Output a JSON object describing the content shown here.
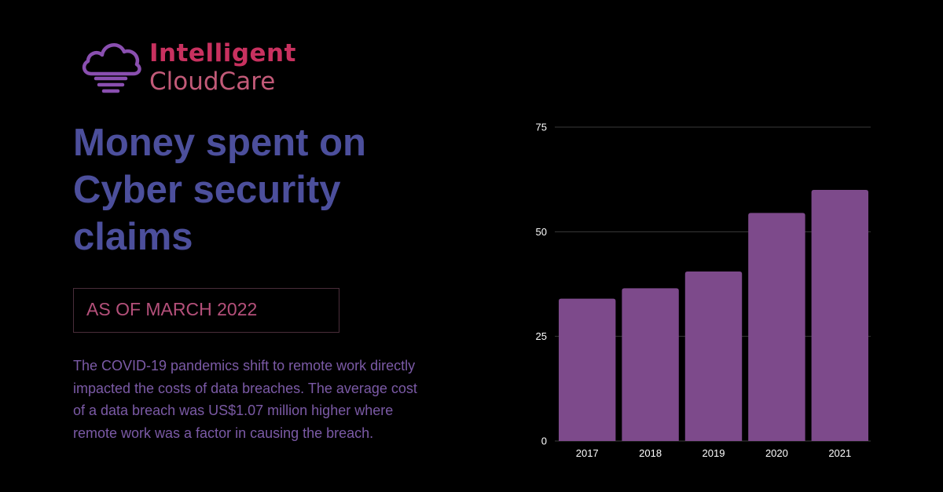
{
  "logo": {
    "line1": "Intelligent",
    "line2": "CloudCare",
    "line1_color": "#c8315f",
    "line2_color": "#c25a78",
    "icon": "cloud-lightbulb-icon",
    "icon_color": "#8a4fb0"
  },
  "title": "Money spent  on\nCyber security\nclaims",
  "title_color": "#4c4f9c",
  "date_label": "AS OF MARCH 2022",
  "date_color": "#b4507a",
  "description": "The COVID-19 pandemics shift to remote work directly impacted the costs of data breaches. The average cost of a data breach was US$1.07 million higher where remote work was a factor in causing the breach.",
  "chart_data": {
    "type": "bar",
    "categories": [
      "2017",
      "2018",
      "2019",
      "2020",
      "2021"
    ],
    "values": [
      34,
      36.5,
      40.5,
      54.5,
      60
    ],
    "ylim": [
      0,
      75
    ],
    "yticks": [
      "0",
      "25",
      "50",
      "75"
    ],
    "grid": true,
    "bar_color": "#7d4a8b",
    "grid_color": "#3a3a3a",
    "title": "",
    "xlabel": "",
    "ylabel": ""
  }
}
